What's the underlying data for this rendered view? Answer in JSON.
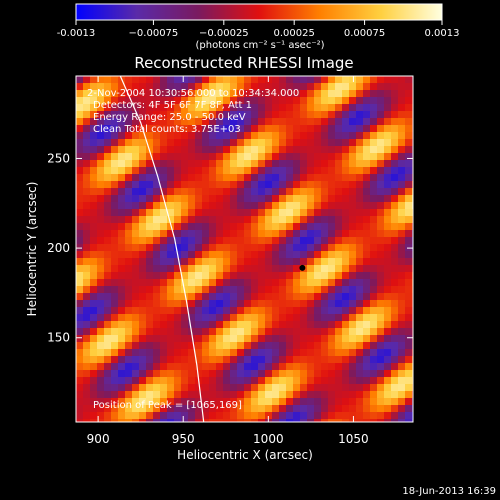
{
  "colorbar": {
    "ticks": [
      {
        "value": -0.0013,
        "label": "-0.0013"
      },
      {
        "value": -0.00075,
        "label": "−0.00075"
      },
      {
        "value": -0.00025,
        "label": "−0.00025"
      },
      {
        "value": 0.00025,
        "label": "0.00025"
      },
      {
        "value": 0.00075,
        "label": "0.00075"
      },
      {
        "value": 0.0013,
        "label": "0.0013"
      }
    ],
    "range": [
      -0.0013,
      0.0013
    ],
    "unit_label": "(photons cm⁻² s⁻¹ asec⁻²)",
    "colormap": [
      "#0000ff",
      "#5a2aa8",
      "#7a1a60",
      "#e01010",
      "#ff8000",
      "#ffd040",
      "#ffffe0"
    ]
  },
  "chart_data": {
    "type": "heatmap",
    "title": "Reconstructed RHESSI Image",
    "xlabel": "Heliocentric X (arcsec)",
    "ylabel": "Heliocentric Y (arcsec)",
    "xlim": [
      887,
      1085
    ],
    "ylim": [
      103,
      296
    ],
    "xticks": [
      900,
      950,
      1000,
      1050
    ],
    "yticks": [
      150,
      200,
      250
    ],
    "info_lines": [
      "2-Nov-2004 10:30:56.000 to 10:34:34.000",
      "Detectors: 4F 5F 6F 7F 8F, Att 1",
      "Energy Range: 25.0 - 50.0 keV",
      "Clean    Total counts: 3.75E+03"
    ],
    "peak_label": "Position of Peak = [1065,169]",
    "peak_position": [
      1065,
      169
    ],
    "marker": [
      1020,
      189
    ],
    "limb_curve": [
      [
        913,
        296
      ],
      [
        925,
        270
      ],
      [
        935,
        240
      ],
      [
        945,
        205
      ],
      [
        952,
        170
      ],
      [
        958,
        135
      ],
      [
        962,
        103
      ]
    ],
    "pattern": {
      "wave_direction": [
        0.55,
        -0.8
      ],
      "period_arcsec": 38,
      "modulation_wave_direction": [
        0.8,
        0.55
      ],
      "modulation_period_arcsec": 62
    }
  },
  "timestamp": "18-Jun-2013 16:39"
}
